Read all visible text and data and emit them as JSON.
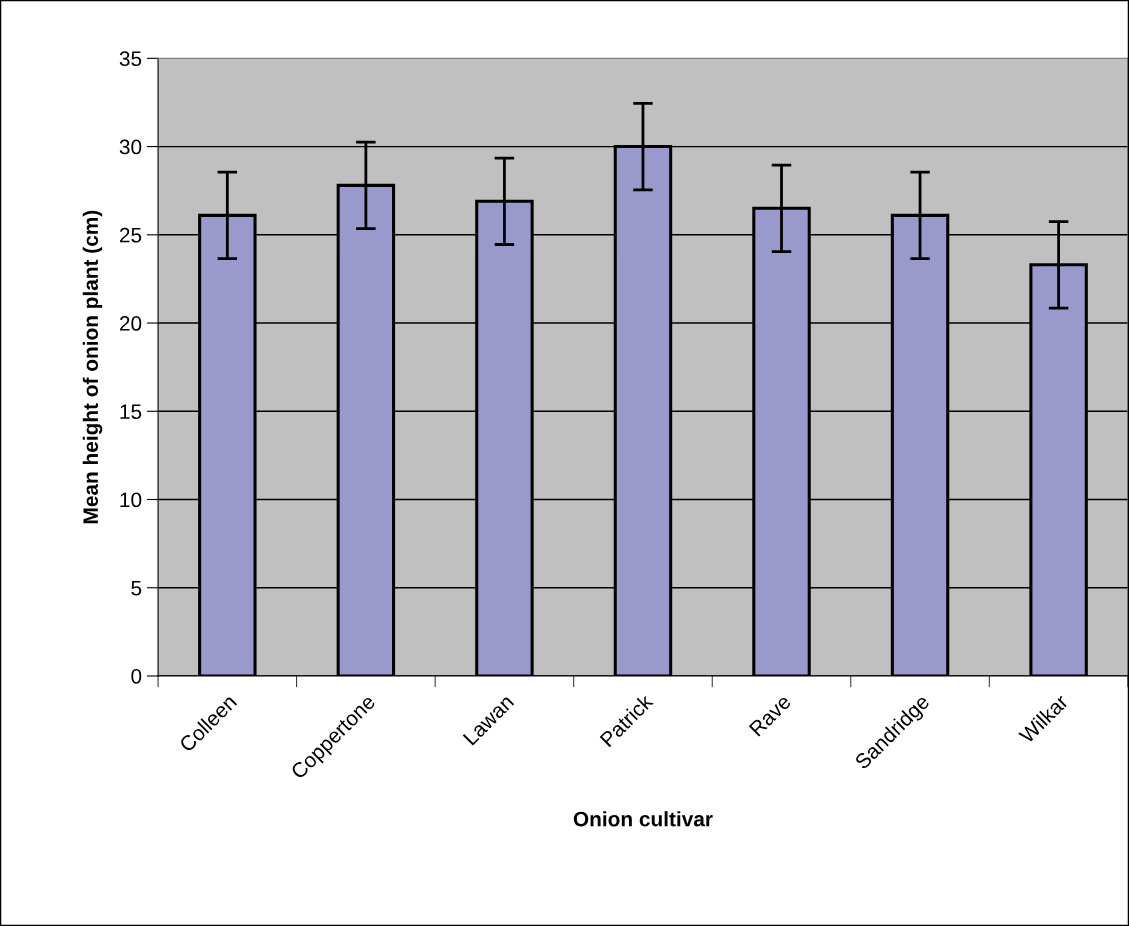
{
  "chart_data": {
    "type": "bar",
    "xlabel": "Onion cultivar",
    "ylabel": "Mean height of onion plant (cm)",
    "categories": [
      "Colleen",
      "Coppertone",
      "Lawan",
      "Patrick",
      "Rave",
      "Sandridge",
      "Wilkar"
    ],
    "values": [
      26.1,
      27.8,
      26.9,
      30.0,
      26.5,
      26.1,
      23.3
    ],
    "errors": [
      2.45,
      2.45,
      2.45,
      2.45,
      2.45,
      2.45,
      2.45
    ],
    "color": "#9999cc",
    "ylim": [
      0,
      35
    ],
    "yticks": [
      0,
      5,
      10,
      15,
      20,
      25,
      30,
      35
    ],
    "grid": "y"
  }
}
